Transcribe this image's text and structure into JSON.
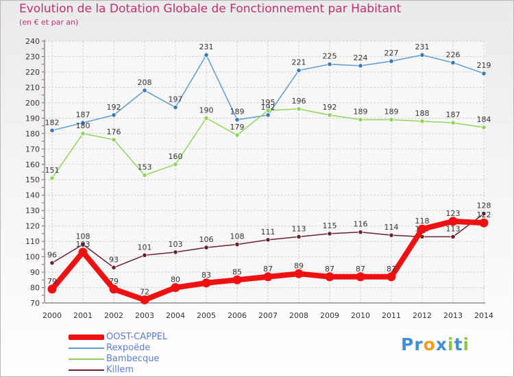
{
  "header": {
    "title": "Evolution de la Dotation Globale de Fonctionnement par Habitant",
    "subtitle": "(en € et par an)"
  },
  "chart_data": {
    "type": "line",
    "title": "Evolution de la Dotation Globale de Fonctionnement par Habitant",
    "subtitle": "(en € et par an)",
    "xlabel": "",
    "ylabel": "",
    "ylim": [
      70,
      240
    ],
    "yticks": [
      70,
      80,
      90,
      100,
      110,
      120,
      130,
      140,
      150,
      160,
      170,
      180,
      190,
      200,
      210,
      220,
      230,
      240
    ],
    "categories": [
      "2000",
      "2001",
      "2002",
      "2003",
      "2004",
      "2005",
      "2006",
      "2007",
      "2008",
      "2009",
      "2010",
      "2011",
      "2012",
      "2013",
      "2014"
    ],
    "grid": true,
    "legend_position": "bottom-left",
    "series": [
      {
        "name": "Rexpoëde",
        "color": "#5b9bd5",
        "marker": "#3a79b8",
        "values": [
          182,
          187,
          192,
          208,
          197,
          231,
          189,
          192,
          221,
          225,
          224,
          227,
          231,
          226,
          219
        ]
      },
      {
        "name": "Bambecque",
        "color": "#8fd45a",
        "marker": "#8fd45a",
        "values": [
          151,
          180,
          176,
          153,
          160,
          190,
          179,
          195,
          196,
          192,
          189,
          189,
          188,
          187,
          184
        ]
      },
      {
        "name": "Killem",
        "color": "#6b1f2a",
        "marker": "#6b1f2a",
        "values": [
          96,
          108,
          93,
          101,
          103,
          106,
          108,
          111,
          113,
          115,
          116,
          114,
          113,
          113,
          128
        ]
      },
      {
        "name": "OOST-CAPPEL",
        "color": "#ee1111",
        "marker": "#ee1111",
        "values": [
          79,
          103,
          79,
          72,
          80,
          83,
          85,
          87,
          89,
          87,
          87,
          87,
          118,
          123,
          122
        ]
      }
    ]
  },
  "legend": {
    "items": [
      {
        "name": "OOST-CAPPEL",
        "color": "#ee1111"
      },
      {
        "name": "Rexpoëde",
        "color": "#5b9bd5"
      },
      {
        "name": "Bambecque",
        "color": "#8fd45a"
      },
      {
        "name": "Killem",
        "color": "#6b1f2a"
      }
    ]
  },
  "logo": {
    "letters": [
      "P",
      "r",
      "o",
      "x",
      "i",
      "t",
      "i"
    ],
    "colors": [
      "#3d8fd6",
      "#3d8fd6",
      "#f59a1b",
      "#3d8fd6",
      "#8dc63f",
      "#3d8fd6",
      "#8dc63f"
    ]
  }
}
